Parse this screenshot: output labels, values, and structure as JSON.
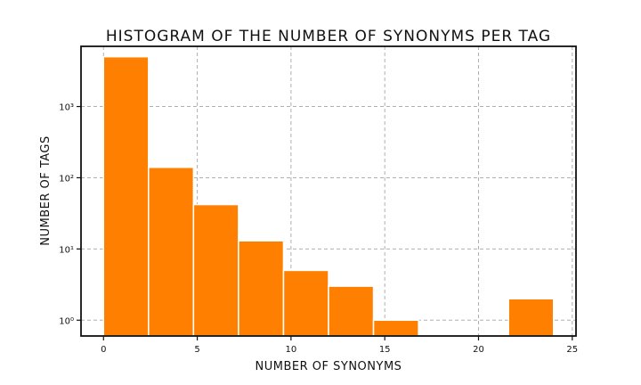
{
  "chart_data": {
    "type": "bar",
    "title": "Histogram of the number of synonyms per tag",
    "xlabel": "Number of synonyms",
    "ylabel": "Number of tags",
    "yscale": "log",
    "bin_edges": [
      0,
      2.4,
      4.8,
      7.2,
      9.6,
      12.0,
      14.4,
      16.8,
      19.2,
      21.6,
      24.0
    ],
    "values": [
      5000,
      140,
      42,
      13,
      5,
      3,
      1,
      0,
      0,
      2
    ],
    "xlim": [
      -1.2,
      25.2
    ],
    "ylim": [
      0.6,
      7000
    ],
    "x_ticks": [
      0,
      5,
      10,
      15,
      20,
      25
    ],
    "y_ticks": [
      {
        "value": 1,
        "label": "10⁰"
      },
      {
        "value": 10,
        "label": "10¹"
      },
      {
        "value": 100,
        "label": "10²"
      },
      {
        "value": 1000,
        "label": "10³"
      }
    ],
    "grid": true,
    "bar_color": "#ff8000"
  }
}
